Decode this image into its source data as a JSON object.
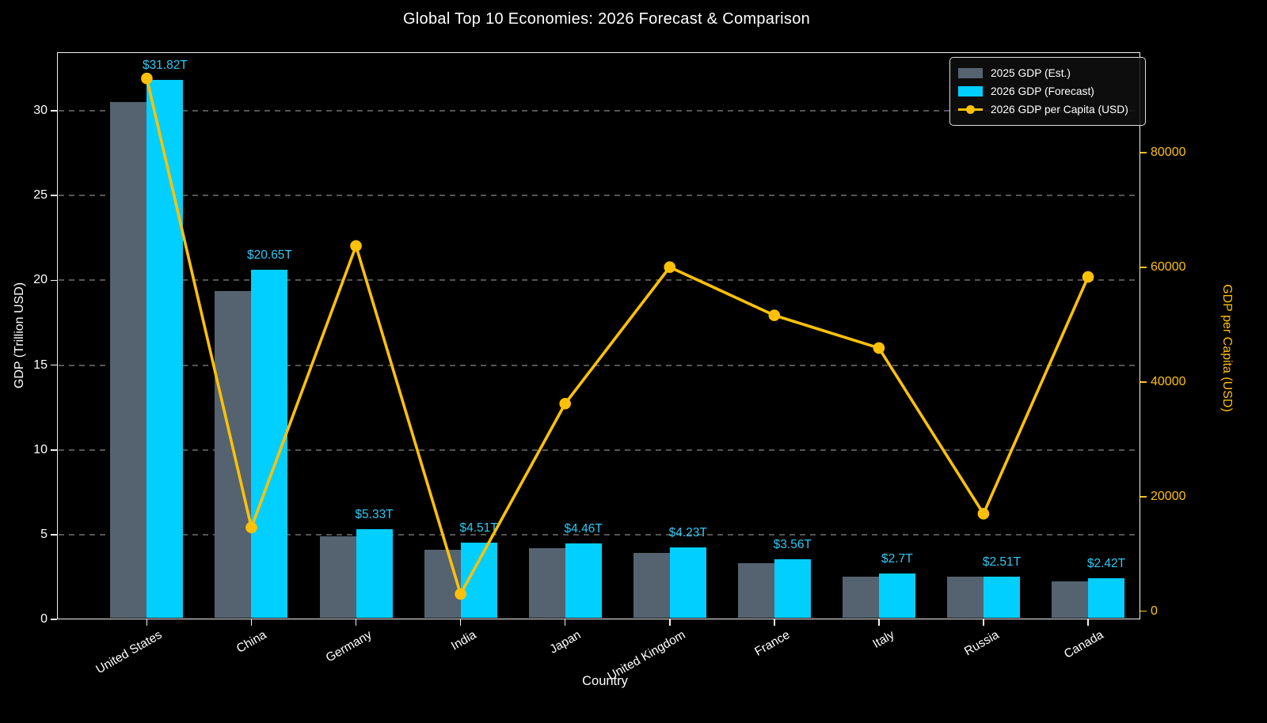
{
  "title": "Global Top 10 Economies: 2026 Forecast & Comparison",
  "chart_data": {
    "type": "bar+line",
    "categories": [
      "United States",
      "China",
      "Germany",
      "India",
      "Japan",
      "United Kingdom",
      "France",
      "Italy",
      "Russia",
      "Canada"
    ],
    "series": [
      {
        "name": "2025 GDP (Est.)",
        "type": "bar",
        "axis": "left",
        "color": "#556370",
        "values": [
          30.5,
          19.35,
          4.9,
          4.1,
          4.2,
          3.9,
          3.3,
          2.5,
          2.5,
          2.25
        ]
      },
      {
        "name": "2026 GDP (Forecast)",
        "type": "bar",
        "axis": "left",
        "color": "#00cfff",
        "values": [
          31.82,
          20.65,
          5.33,
          4.51,
          4.46,
          4.23,
          3.56,
          2.7,
          2.51,
          2.42
        ],
        "labels": [
          "$31.82T",
          "$20.65T",
          "$5.33T",
          "$4.51T",
          "$4.46T",
          "$4.23T",
          "$3.56T",
          "$2.7T",
          "$2.51T",
          "$2.42T"
        ]
      },
      {
        "name": "2026 GDP per Capita (USD)",
        "type": "line",
        "axis": "right",
        "color": "#ffc107",
        "values": [
          92900,
          14600,
          63700,
          3000,
          36200,
          60000,
          51600,
          45900,
          17000,
          58300
        ]
      }
    ],
    "xlabel": "Country",
    "ylabel_left": "GDP (Trillion USD)",
    "ylabel_right": "GDP per Capita (USD)",
    "left_ticks": [
      0,
      5,
      10,
      15,
      20,
      25,
      30
    ],
    "right_ticks": [
      0,
      20000,
      40000,
      60000,
      80000
    ],
    "ylim_left": [
      0,
      33.46
    ],
    "ylim_right": [
      -1420,
      97480
    ],
    "grid": "horizontal-dashed",
    "legend_position": "upper right",
    "background": "#000000",
    "value_label_color": "#2fc9f4",
    "text_color": "#ffffff"
  }
}
